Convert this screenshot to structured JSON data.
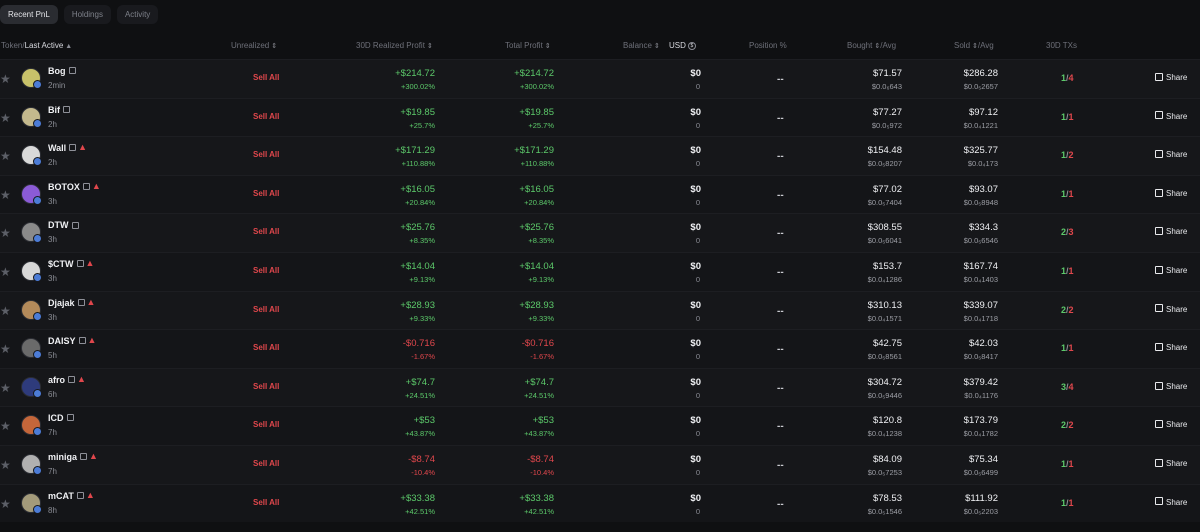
{
  "tabs": [
    {
      "label": "Recent PnL",
      "active": true
    },
    {
      "label": "Holdings",
      "active": false
    },
    {
      "label": "Activity",
      "active": false
    }
  ],
  "columns": {
    "token": "Token/",
    "last_active": "Last Active",
    "unrealized": "Unrealized",
    "realized": "30D Realized Profit",
    "total": "Total Profit",
    "balance": "Balance",
    "usd": "USD",
    "position": "Position %",
    "bought": "Bought",
    "bought_avg": "/Avg",
    "sold": "Sold",
    "sold_avg": "/Avg",
    "txs": "30D TXs"
  },
  "row_labels": {
    "sell_all": "Sell All",
    "position_empty": "--",
    "share": "Share"
  },
  "rows": [
    {
      "token": "Bog",
      "age": "2min",
      "warn": false,
      "sentiment": "pos",
      "realized": "+$214.72",
      "realized_pct": "+300.02%",
      "total": "+$214.72",
      "total_pct": "+300.02%",
      "balance": "$0",
      "balance_amt": "0",
      "bought": "$71.57",
      "bought_avg": "$0.0₆643",
      "sold": "$286.28",
      "sold_avg": "$0.0₅2657",
      "tx_buy": "1",
      "tx_sell": "4"
    },
    {
      "token": "Bif",
      "age": "2h",
      "warn": false,
      "sentiment": "pos",
      "realized": "+$19.85",
      "realized_pct": "+25.7%",
      "total": "+$19.85",
      "total_pct": "+25.7%",
      "balance": "$0",
      "balance_amt": "0",
      "bought": "$77.27",
      "bought_avg": "$0.0₅972",
      "sold": "$97.12",
      "sold_avg": "$0.0₄1221",
      "tx_buy": "1",
      "tx_sell": "1"
    },
    {
      "token": "Wall",
      "age": "2h",
      "warn": true,
      "sentiment": "pos",
      "realized": "+$171.29",
      "realized_pct": "+110.88%",
      "total": "+$171.29",
      "total_pct": "+110.88%",
      "balance": "$0",
      "balance_amt": "0",
      "bought": "$154.48",
      "bought_avg": "$0.0₅8207",
      "sold": "$325.77",
      "sold_avg": "$0.0₄173",
      "tx_buy": "1",
      "tx_sell": "2"
    },
    {
      "token": "BOTOX",
      "age": "3h",
      "warn": true,
      "sentiment": "pos",
      "realized": "+$16.05",
      "realized_pct": "+20.84%",
      "total": "+$16.05",
      "total_pct": "+20.84%",
      "balance": "$0",
      "balance_amt": "0",
      "bought": "$77.02",
      "bought_avg": "$0.0₅7404",
      "sold": "$93.07",
      "sold_avg": "$0.0₅8948",
      "tx_buy": "1",
      "tx_sell": "1"
    },
    {
      "token": "DTW",
      "age": "3h",
      "warn": false,
      "sentiment": "pos",
      "realized": "+$25.76",
      "realized_pct": "+8.35%",
      "total": "+$25.76",
      "total_pct": "+8.35%",
      "balance": "$0",
      "balance_amt": "0",
      "bought": "$308.55",
      "bought_avg": "$0.0₅6041",
      "sold": "$334.3",
      "sold_avg": "$0.0₅6546",
      "tx_buy": "2",
      "tx_sell": "3"
    },
    {
      "token": "$CTW",
      "age": "3h",
      "warn": true,
      "sentiment": "pos",
      "realized": "+$14.04",
      "realized_pct": "+9.13%",
      "total": "+$14.04",
      "total_pct": "+9.13%",
      "balance": "$0",
      "balance_amt": "0",
      "bought": "$153.7",
      "bought_avg": "$0.0₄1286",
      "sold": "$167.74",
      "sold_avg": "$0.0₄1403",
      "tx_buy": "1",
      "tx_sell": "1"
    },
    {
      "token": "Djajak",
      "age": "3h",
      "warn": true,
      "sentiment": "pos",
      "realized": "+$28.93",
      "realized_pct": "+9.33%",
      "total": "+$28.93",
      "total_pct": "+9.33%",
      "balance": "$0",
      "balance_amt": "0",
      "bought": "$310.13",
      "bought_avg": "$0.0₄1571",
      "sold": "$339.07",
      "sold_avg": "$0.0₄1718",
      "tx_buy": "2",
      "tx_sell": "2"
    },
    {
      "token": "DAISY",
      "age": "5h",
      "warn": true,
      "sentiment": "neg",
      "realized": "-$0.716",
      "realized_pct": "-1.67%",
      "total": "-$0.716",
      "total_pct": "-1.67%",
      "balance": "$0",
      "balance_amt": "0",
      "bought": "$42.75",
      "bought_avg": "$0.0₅8561",
      "sold": "$42.03",
      "sold_avg": "$0.0₅8417",
      "tx_buy": "1",
      "tx_sell": "1"
    },
    {
      "token": "afro",
      "age": "6h",
      "warn": true,
      "sentiment": "pos",
      "realized": "+$74.7",
      "realized_pct": "+24.51%",
      "total": "+$74.7",
      "total_pct": "+24.51%",
      "balance": "$0",
      "balance_amt": "0",
      "bought": "$304.72",
      "bought_avg": "$0.0₅9446",
      "sold": "$379.42",
      "sold_avg": "$0.0₄1176",
      "tx_buy": "3",
      "tx_sell": "4"
    },
    {
      "token": "ICD",
      "age": "7h",
      "warn": false,
      "sentiment": "pos",
      "realized": "+$53",
      "realized_pct": "+43.87%",
      "total": "+$53",
      "total_pct": "+43.87%",
      "balance": "$0",
      "balance_amt": "0",
      "bought": "$120.8",
      "bought_avg": "$0.0₄1238",
      "sold": "$173.79",
      "sold_avg": "$0.0₄1782",
      "tx_buy": "2",
      "tx_sell": "2"
    },
    {
      "token": "miniga",
      "age": "7h",
      "warn": true,
      "sentiment": "neg",
      "realized": "-$8.74",
      "realized_pct": "-10.4%",
      "total": "-$8.74",
      "total_pct": "-10.4%",
      "balance": "$0",
      "balance_amt": "0",
      "bought": "$84.09",
      "bought_avg": "$0.0₅7253",
      "sold": "$75.34",
      "sold_avg": "$0.0₅6499",
      "tx_buy": "1",
      "tx_sell": "1"
    },
    {
      "token": "mCAT",
      "age": "8h",
      "warn": true,
      "sentiment": "pos",
      "realized": "+$33.38",
      "realized_pct": "+42.51%",
      "total": "+$33.38",
      "total_pct": "+42.51%",
      "balance": "$0",
      "balance_amt": "0",
      "bought": "$78.53",
      "bought_avg": "$0.0₅1546",
      "sold": "$111.92",
      "sold_avg": "$0.0₅2203",
      "tx_buy": "1",
      "tx_sell": "1"
    }
  ],
  "colors": {
    "positive": "#5cc96a",
    "negative": "#e0474c",
    "background": "#0f1012"
  }
}
